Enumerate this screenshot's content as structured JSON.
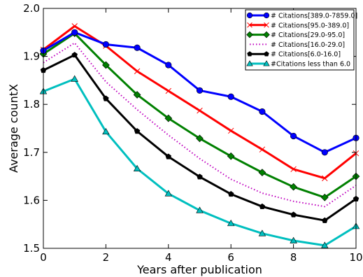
{
  "chart_data": {
    "type": "line",
    "title": "",
    "xlabel": "Years after publication",
    "ylabel": "Average countX",
    "xlim": [
      0,
      10
    ],
    "ylim": [
      1.5,
      2.0
    ],
    "x_ticks": [
      0,
      2,
      4,
      6,
      8,
      10
    ],
    "y_ticks": [
      1.5,
      1.6,
      1.7,
      1.8,
      1.9,
      2.0
    ],
    "x_tick_labels": [
      "0",
      "2",
      "4",
      "6",
      "8",
      "10"
    ],
    "y_tick_labels": [
      "1.5",
      "1.6",
      "1.7",
      "1.8",
      "1.9",
      "2.0"
    ],
    "grid": false,
    "legend_position": "top-right",
    "x": [
      0,
      1,
      2,
      3,
      4,
      5,
      6,
      7,
      8,
      9,
      10
    ],
    "series": [
      {
        "name": "# Citations[389.0-7859.0]",
        "color": "#0000ff",
        "line": "solid",
        "marker": "circle",
        "values": [
          1.912,
          1.95,
          1.925,
          1.918,
          1.882,
          1.829,
          1.816,
          1.785,
          1.734,
          1.7,
          1.73
        ]
      },
      {
        "name": "# Citations[95.0-389.0]",
        "color": "#ff0000",
        "line": "solid",
        "marker": "x",
        "values": [
          1.914,
          1.963,
          1.922,
          1.869,
          1.828,
          1.787,
          1.745,
          1.706,
          1.665,
          1.646,
          1.698
        ]
      },
      {
        "name": "# Citations[29.0-95.0]",
        "color": "#008000",
        "line": "solid",
        "marker": "diamond",
        "values": [
          1.905,
          1.948,
          1.882,
          1.82,
          1.771,
          1.729,
          1.692,
          1.658,
          1.628,
          1.606,
          1.65
        ]
      },
      {
        "name": "# Citations[16.0-29.0]",
        "color": "#bf00bf",
        "line": "dotted",
        "marker": "none",
        "values": [
          1.887,
          1.928,
          1.847,
          1.789,
          1.736,
          1.687,
          1.644,
          1.615,
          1.598,
          1.587,
          1.631
        ]
      },
      {
        "name": "# Citations[6.0-16.0]",
        "color": "#000000",
        "line": "solid",
        "marker": "pentagon",
        "values": [
          1.871,
          1.903,
          1.812,
          1.744,
          1.691,
          1.649,
          1.613,
          1.587,
          1.57,
          1.558,
          1.603
        ]
      },
      {
        "name": "#Citations less than 6.0",
        "color": "#00bfbf",
        "line": "solid",
        "marker": "triangle",
        "values": [
          1.827,
          1.853,
          1.743,
          1.666,
          1.614,
          1.579,
          1.552,
          1.531,
          1.516,
          1.506,
          1.546
        ]
      }
    ]
  }
}
